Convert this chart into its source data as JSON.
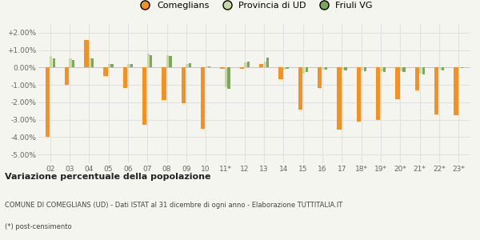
{
  "categories": [
    "02",
    "03",
    "04",
    "05",
    "06",
    "07",
    "08",
    "09",
    "10",
    "11*",
    "12",
    "13",
    "14",
    "15",
    "16",
    "17",
    "18*",
    "19*",
    "20*",
    "21*",
    "22*",
    "23*"
  ],
  "comeglians": [
    -4.0,
    -1.0,
    1.6,
    -0.5,
    -1.2,
    -3.3,
    -1.85,
    -2.05,
    -3.5,
    -0.08,
    -0.08,
    0.2,
    -0.65,
    -2.4,
    -1.2,
    -3.55,
    -3.1,
    -3.0,
    -1.8,
    -1.3,
    -2.7,
    -2.75
  ],
  "provincia_ud": [
    0.65,
    0.52,
    0.58,
    0.22,
    0.22,
    0.78,
    0.7,
    0.2,
    0.07,
    -1.12,
    0.28,
    0.32,
    -0.12,
    -0.33,
    -0.1,
    -0.14,
    -0.17,
    -0.19,
    -0.21,
    -0.37,
    -0.14,
    -0.04
  ],
  "friuli_vg": [
    0.53,
    0.42,
    0.52,
    0.18,
    0.2,
    0.72,
    0.68,
    0.23,
    0.05,
    -1.22,
    0.33,
    0.58,
    -0.07,
    -0.26,
    -0.11,
    -0.17,
    -0.21,
    -0.24,
    -0.27,
    -0.4,
    -0.17,
    -0.03
  ],
  "color_comeglians": "#f59120",
  "color_provincia": "#c8d9a5",
  "color_friuli": "#7da858",
  "background_color": "#f5f5f0",
  "ylim": [
    -5.5,
    2.5
  ],
  "yticks": [
    -5.0,
    -4.0,
    -3.0,
    -2.0,
    -1.0,
    0.0,
    1.0,
    2.0
  ],
  "title_bold": "Variazione percentuale della popolazione",
  "subtitle1": "COMUNE DI COMEGLIANS (UD) - Dati ISTAT al 31 dicembre di ogni anno - Elaborazione TUTTITALIA.IT",
  "subtitle2": "(*) post-censimento",
  "legend_labels": [
    "Comeglians",
    "Provincia di UD",
    "Friuli VG"
  ]
}
